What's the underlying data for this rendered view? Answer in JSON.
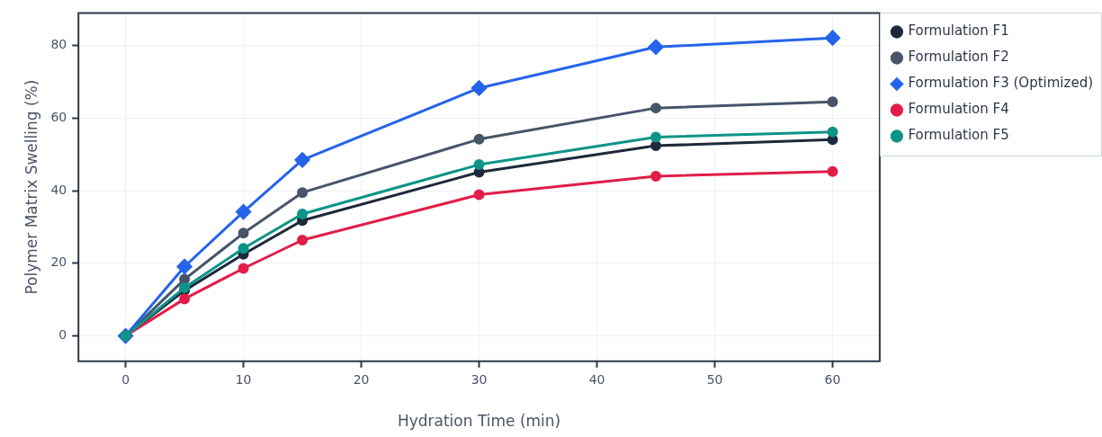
{
  "chart_data": {
    "type": "line",
    "xlabel": "Hydration Time (min)",
    "ylabel": "Polymer Matrix Swelling (%)",
    "x": [
      0,
      5,
      10,
      15,
      30,
      45,
      60
    ],
    "series": [
      {
        "name": "Formulation F1",
        "color": "#1e293b",
        "marker": "circle",
        "values": [
          0,
          12.5,
          22.5,
          31.8,
          45.1,
          52.4,
          54.1
        ]
      },
      {
        "name": "Formulation F2",
        "color": "#475569",
        "marker": "circle",
        "values": [
          0,
          15.6,
          28.3,
          39.5,
          54.2,
          62.8,
          64.5
        ]
      },
      {
        "name": "Formulation F3 (Optimized)",
        "color": "#2563eb",
        "marker": "diamond",
        "values": [
          0,
          19.1,
          34.2,
          48.5,
          68.3,
          79.6,
          82.1
        ]
      },
      {
        "name": "Formulation F4",
        "color": "#e11d48",
        "marker": "circle",
        "values": [
          0,
          10.2,
          18.6,
          26.4,
          38.9,
          44.0,
          45.3
        ]
      },
      {
        "name": "Formulation F5",
        "color": "#0d9488",
        "marker": "circle",
        "values": [
          0,
          13.3,
          24.1,
          33.6,
          47.2,
          54.8,
          56.2
        ]
      }
    ],
    "xlim": [
      -4,
      64
    ],
    "xticks": [
      0,
      10,
      20,
      30,
      40,
      50,
      60
    ],
    "ylim": [
      -7,
      89
    ],
    "yticks": [
      0,
      20,
      40,
      60,
      80
    ],
    "grid": true,
    "legend": "top right",
    "line_style": "solid"
  }
}
